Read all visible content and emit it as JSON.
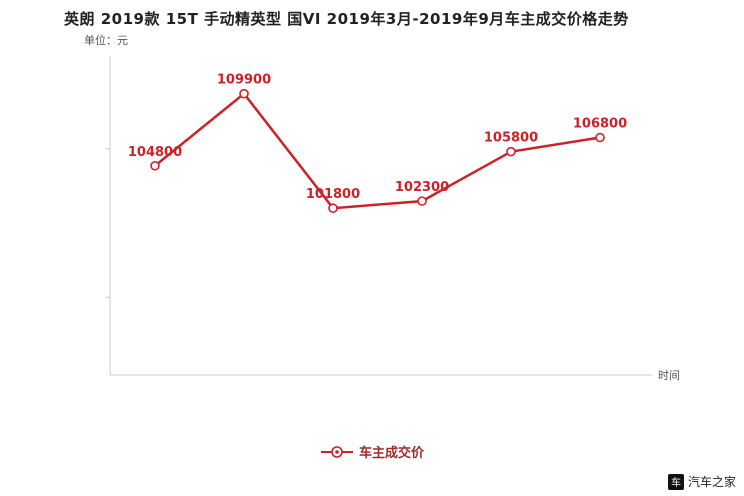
{
  "page": {
    "title": "英朗 2019款 15T 手动精英型 国VI 2019年3月-2019年9月车主成交价格走势",
    "unit_label": "单位：元",
    "xaxis_label": "时间",
    "watermark": "汽车之家",
    "watermark_logo_glyph": "车"
  },
  "legend": {
    "label": "车主成交价"
  },
  "colors": {
    "line": "#cc2229",
    "point_fill": "#ffffff",
    "value_label": "#cc2229",
    "legend_text": "#9e2a2a",
    "axis": "#cccccc"
  },
  "chart_data": {
    "type": "line",
    "title": "英朗 2019款 15T 手动精英型 国VI 2019年3月-2019年9月车主成交价格走势",
    "xlabel": "时间",
    "ylabel": "单位：元",
    "x_labels_visible": false,
    "x": [
      "",
      "",
      "",
      "",
      "",
      ""
    ],
    "series": [
      {
        "name": "车主成交价",
        "values": [
          104800,
          109900,
          101800,
          102300,
          105800,
          106800
        ]
      }
    ],
    "point_labels": [
      "104800",
      "109900",
      "101800",
      "102300",
      "105800",
      "106800"
    ],
    "ylim": [
      90000,
      112000
    ],
    "y_ticks": [
      95500,
      106000
    ],
    "grid": false,
    "legend_position": "bottom"
  }
}
